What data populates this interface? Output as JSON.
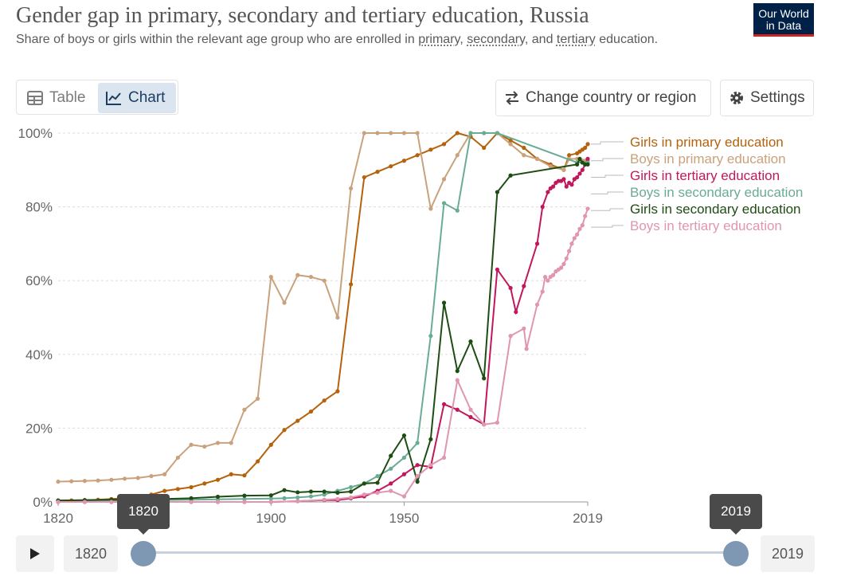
{
  "header": {
    "title": "Gender gap in primary, secondary and tertiary education, Russia",
    "subtitle_prefix": "Share of boys or girls within the relevant age group who are enrolled in ",
    "subtitle_link1": "primary",
    "subtitle_sep1": ", ",
    "subtitle_link2": "secondary",
    "subtitle_sep2": ", and ",
    "subtitle_link3": "tertiary",
    "subtitle_suffix": " education.",
    "logo_line1": "Our World",
    "logo_line2": "in Data"
  },
  "tabs": {
    "table_label": "Table",
    "chart_label": "Chart",
    "active": "chart"
  },
  "buttons": {
    "change_country": "Change country or region",
    "settings": "Settings"
  },
  "timeline": {
    "start_year": "1820",
    "end_year": "2019",
    "start_tooltip": "1820",
    "end_tooltip": "2019"
  },
  "colors": {
    "accent": "#002147",
    "track": "#c6d1dc",
    "handle": "#7e97b2"
  },
  "chart_data": {
    "type": "line",
    "xlim": [
      1820,
      2019
    ],
    "ylim": [
      0,
      100
    ],
    "y_ticks": [
      {
        "value": 0,
        "label": "0%"
      },
      {
        "value": 20,
        "label": "20%"
      },
      {
        "value": 40,
        "label": "40%"
      },
      {
        "value": 60,
        "label": "60%"
      },
      {
        "value": 80,
        "label": "80%"
      },
      {
        "value": 100,
        "label": "100%"
      }
    ],
    "x_ticks": [
      {
        "value": 1820,
        "label": "1820"
      },
      {
        "value": 1900,
        "label": "1900"
      },
      {
        "value": 1950,
        "label": "1950"
      },
      {
        "value": 2019,
        "label": "2019"
      }
    ],
    "grid": "horizontal dotted",
    "legend": "right",
    "series": [
      {
        "name": "Girls in primary education",
        "color": "#b5620c",
        "label_y": 97,
        "points": [
          [
            1820,
            0.3
          ],
          [
            1825,
            0.4
          ],
          [
            1830,
            0.5
          ],
          [
            1835,
            0.6
          ],
          [
            1840,
            0.8
          ],
          [
            1845,
            1
          ],
          [
            1850,
            1.5
          ],
          [
            1855,
            2
          ],
          [
            1860,
            3
          ],
          [
            1865,
            3.5
          ],
          [
            1870,
            4
          ],
          [
            1875,
            5
          ],
          [
            1880,
            6
          ],
          [
            1885,
            7.5
          ],
          [
            1890,
            7.2
          ],
          [
            1895,
            11
          ],
          [
            1900,
            15.5
          ],
          [
            1905,
            19.5
          ],
          [
            1910,
            22
          ],
          [
            1915,
            24.5
          ],
          [
            1920,
            27.5
          ],
          [
            1925,
            30
          ],
          [
            1930,
            59
          ],
          [
            1935,
            88
          ],
          [
            1940,
            89.5
          ],
          [
            1945,
            91
          ],
          [
            1950,
            92.5
          ],
          [
            1955,
            94
          ],
          [
            1960,
            95.5
          ],
          [
            1965,
            97
          ],
          [
            1970,
            100
          ],
          [
            1975,
            99
          ],
          [
            1980,
            96
          ],
          [
            1985,
            100
          ],
          [
            1990,
            98
          ],
          [
            1995,
            96
          ],
          [
            2000,
            93
          ],
          [
            2005,
            91.5
          ],
          [
            2010,
            90
          ],
          [
            2012,
            94
          ],
          [
            2015,
            94.5
          ],
          [
            2016,
            95
          ],
          [
            2017,
            95.5
          ],
          [
            2018,
            96
          ],
          [
            2019,
            97
          ]
        ]
      },
      {
        "name": "Boys in primary education",
        "color": "#c9a27c",
        "label_y": 92.5,
        "points": [
          [
            1820,
            5.5
          ],
          [
            1825,
            5.6
          ],
          [
            1830,
            5.7
          ],
          [
            1835,
            5.8
          ],
          [
            1840,
            6
          ],
          [
            1845,
            6.3
          ],
          [
            1850,
            6.5
          ],
          [
            1855,
            7
          ],
          [
            1860,
            7.5
          ],
          [
            1865,
            12
          ],
          [
            1870,
            15.5
          ],
          [
            1875,
            15
          ],
          [
            1880,
            16
          ],
          [
            1885,
            16
          ],
          [
            1890,
            25
          ],
          [
            1895,
            28
          ],
          [
            1900,
            61
          ],
          [
            1905,
            54
          ],
          [
            1910,
            61.5
          ],
          [
            1915,
            61
          ],
          [
            1920,
            60
          ],
          [
            1925,
            50
          ],
          [
            1930,
            85
          ],
          [
            1935,
            100
          ],
          [
            1940,
            100
          ],
          [
            1945,
            100
          ],
          [
            1950,
            100
          ],
          [
            1955,
            100
          ],
          [
            1960,
            79.5
          ],
          [
            1965,
            87.5
          ],
          [
            1970,
            94
          ],
          [
            1975,
            100
          ],
          [
            1980,
            100
          ],
          [
            1985,
            100
          ],
          [
            1990,
            97
          ],
          [
            1995,
            94
          ],
          [
            2000,
            93
          ],
          [
            2005,
            91
          ],
          [
            2010,
            90
          ],
          [
            2012,
            93
          ],
          [
            2015,
            93
          ],
          [
            2016,
            92.5
          ],
          [
            2017,
            92.5
          ],
          [
            2018,
            92.5
          ],
          [
            2019,
            92.5
          ]
        ]
      },
      {
        "name": "Girls in tertiary education",
        "color": "#c2185b",
        "label_y": 88,
        "points": [
          [
            1820,
            0
          ],
          [
            1830,
            0
          ],
          [
            1840,
            0
          ],
          [
            1850,
            0
          ],
          [
            1860,
            0
          ],
          [
            1870,
            0
          ],
          [
            1880,
            0
          ],
          [
            1890,
            0
          ],
          [
            1900,
            0
          ],
          [
            1910,
            0.2
          ],
          [
            1920,
            0.5
          ],
          [
            1925,
            0.5
          ],
          [
            1930,
            1
          ],
          [
            1935,
            1.5
          ],
          [
            1940,
            3
          ],
          [
            1945,
            5
          ],
          [
            1950,
            7.5
          ],
          [
            1955,
            10
          ],
          [
            1960,
            9.5
          ],
          [
            1965,
            26.5
          ],
          [
            1970,
            25
          ],
          [
            1975,
            23
          ],
          [
            1980,
            21
          ],
          [
            1985,
            63
          ],
          [
            1990,
            58
          ],
          [
            1992,
            51.5
          ],
          [
            1995,
            58.5
          ],
          [
            2000,
            70
          ],
          [
            2002,
            80
          ],
          [
            2004,
            84
          ],
          [
            2005,
            85
          ],
          [
            2006,
            85.5
          ],
          [
            2007,
            86.5
          ],
          [
            2008,
            87
          ],
          [
            2009,
            87
          ],
          [
            2010,
            87.5
          ],
          [
            2011,
            85.5
          ],
          [
            2012,
            86.5
          ],
          [
            2013,
            86
          ],
          [
            2014,
            87.5
          ],
          [
            2015,
            88
          ],
          [
            2016,
            89
          ],
          [
            2017,
            90
          ],
          [
            2018,
            91.5
          ],
          [
            2019,
            93
          ]
        ]
      },
      {
        "name": "Boys in secondary education",
        "color": "#6aab96",
        "label_y": 83.5,
        "points": [
          [
            1820,
            0.3
          ],
          [
            1830,
            0.3
          ],
          [
            1840,
            0.4
          ],
          [
            1850,
            0.4
          ],
          [
            1860,
            0.5
          ],
          [
            1870,
            0.6
          ],
          [
            1880,
            0.7
          ],
          [
            1890,
            0.8
          ],
          [
            1900,
            0.9
          ],
          [
            1905,
            1
          ],
          [
            1910,
            1.2
          ],
          [
            1915,
            1.5
          ],
          [
            1920,
            2
          ],
          [
            1925,
            3
          ],
          [
            1930,
            4
          ],
          [
            1935,
            5
          ],
          [
            1940,
            7
          ],
          [
            1945,
            9
          ],
          [
            1950,
            12
          ],
          [
            1955,
            16
          ],
          [
            1960,
            45
          ],
          [
            1965,
            81
          ],
          [
            1970,
            79
          ],
          [
            1975,
            100
          ],
          [
            1980,
            100
          ],
          [
            1985,
            100
          ],
          [
            2015,
            92
          ],
          [
            2019,
            92
          ]
        ]
      },
      {
        "name": "Girls in secondary education",
        "color": "#1e4d14",
        "label_y": 79,
        "points": [
          [
            1820,
            0.4
          ],
          [
            1830,
            0.5
          ],
          [
            1840,
            0.6
          ],
          [
            1850,
            0.7
          ],
          [
            1860,
            0.8
          ],
          [
            1870,
            1
          ],
          [
            1880,
            1.4
          ],
          [
            1890,
            1.7
          ],
          [
            1900,
            1.8
          ],
          [
            1905,
            3.2
          ],
          [
            1910,
            2.6
          ],
          [
            1915,
            2.8
          ],
          [
            1920,
            2.8
          ],
          [
            1925,
            2.5
          ],
          [
            1930,
            2.8
          ],
          [
            1935,
            5
          ],
          [
            1940,
            5.2
          ],
          [
            1945,
            12.5
          ],
          [
            1950,
            18
          ],
          [
            1955,
            5.5
          ],
          [
            1960,
            17
          ],
          [
            1965,
            54
          ],
          [
            1970,
            35.5
          ],
          [
            1975,
            43.5
          ],
          [
            1980,
            33.5
          ],
          [
            1985,
            84
          ],
          [
            1990,
            88.5
          ],
          [
            2015,
            91.5
          ],
          [
            2016,
            93
          ],
          [
            2017,
            92
          ],
          [
            2018,
            91.5
          ],
          [
            2019,
            91.5
          ]
        ]
      },
      {
        "name": "Boys in tertiary education",
        "color": "#e095b1",
        "label_y": 74.5,
        "points": [
          [
            1820,
            0
          ],
          [
            1830,
            0
          ],
          [
            1840,
            0
          ],
          [
            1850,
            0
          ],
          [
            1860,
            0
          ],
          [
            1870,
            0
          ],
          [
            1880,
            0
          ],
          [
            1890,
            0
          ],
          [
            1900,
            0
          ],
          [
            1910,
            0.2
          ],
          [
            1920,
            0.6
          ],
          [
            1925,
            0.8
          ],
          [
            1930,
            1.2
          ],
          [
            1935,
            2
          ],
          [
            1940,
            2.5
          ],
          [
            1945,
            3
          ],
          [
            1950,
            1.5
          ],
          [
            1955,
            7
          ],
          [
            1960,
            10
          ],
          [
            1965,
            12
          ],
          [
            1970,
            33
          ],
          [
            1975,
            25
          ],
          [
            1980,
            21
          ],
          [
            1985,
            21.5
          ],
          [
            1990,
            45
          ],
          [
            1995,
            47
          ],
          [
            1996,
            41.5
          ],
          [
            2000,
            53.5
          ],
          [
            2002,
            57
          ],
          [
            2003,
            61
          ],
          [
            2004,
            60
          ],
          [
            2005,
            61
          ],
          [
            2006,
            61.5
          ],
          [
            2007,
            62.5
          ],
          [
            2008,
            63
          ],
          [
            2009,
            63.5
          ],
          [
            2010,
            64.5
          ],
          [
            2011,
            66
          ],
          [
            2012,
            68
          ],
          [
            2013,
            70
          ],
          [
            2014,
            71.5
          ],
          [
            2015,
            72.5
          ],
          [
            2016,
            74
          ],
          [
            2017,
            75
          ],
          [
            2018,
            77.5
          ],
          [
            2019,
            79.5
          ]
        ]
      }
    ]
  }
}
